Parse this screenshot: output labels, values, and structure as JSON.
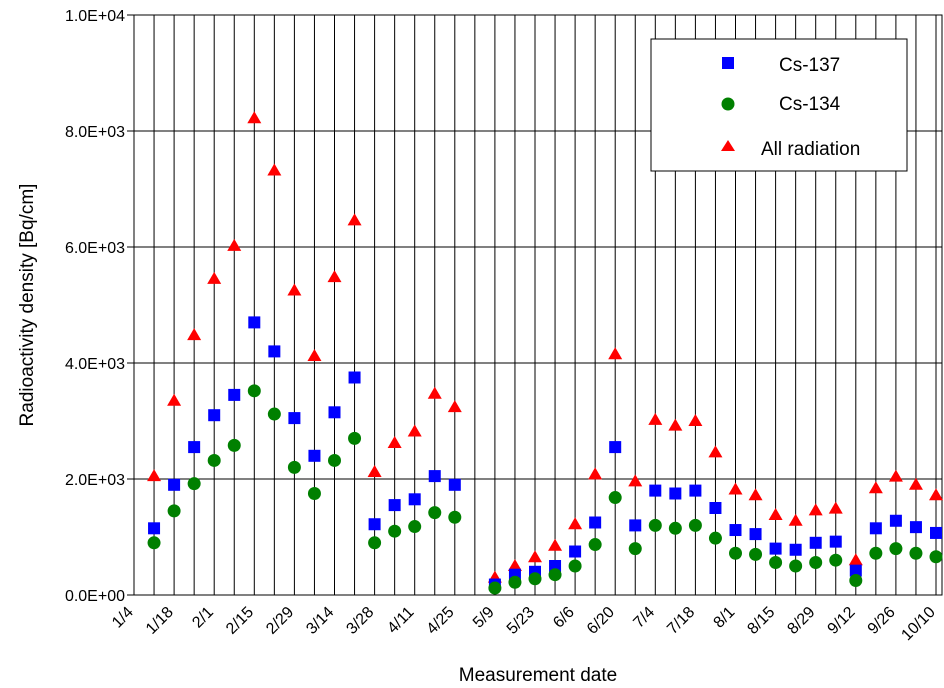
{
  "chart_data": {
    "type": "scatter",
    "xlabel": "Measurement date",
    "ylabel": "Radioactivity density [Bq/cm]",
    "ylim": [
      0,
      10000
    ],
    "y_ticks": [
      "0.0E+00",
      "2.0E+03",
      "4.0E+03",
      "6.0E+03",
      "8.0E+03",
      "1.0E+04"
    ],
    "y_tick_values": [
      0,
      2000,
      4000,
      6000,
      8000,
      10000
    ],
    "x_tick_labels": [
      "1/4",
      "1/18",
      "2/1",
      "2/15",
      "2/29",
      "3/14",
      "3/28",
      "4/11",
      "4/25",
      "5/9",
      "5/23",
      "6/6",
      "6/20",
      "7/4",
      "7/18",
      "8/1",
      "8/15",
      "8/29",
      "9/12",
      "9/26",
      "10/10"
    ],
    "grid": "vertical-lines-each-week, horizontal-lines-at-major-ticks",
    "legend_position": "top-right",
    "x": [
      "1/4",
      "1/11",
      "1/18",
      "1/25",
      "2/1",
      "2/8",
      "2/15",
      "2/22",
      "2/29",
      "3/7",
      "3/14",
      "3/21",
      "3/28",
      "4/4",
      "4/11",
      "4/18",
      "4/25",
      "5/2",
      "5/9",
      "5/16",
      "5/23",
      "5/30",
      "6/6",
      "6/13",
      "6/20",
      "6/27",
      "7/4",
      "7/11",
      "7/18",
      "7/25",
      "8/1",
      "8/8",
      "8/15",
      "8/22",
      "8/29",
      "9/5",
      "9/12",
      "9/19",
      "9/26",
      "10/3",
      "10/10"
    ],
    "series": [
      {
        "name": "Cs-137",
        "marker": "square",
        "color": "#0000ff",
        "values": [
          1150,
          1900,
          2550,
          3100,
          3450,
          4700,
          4200,
          3050,
          2400,
          3150,
          3750,
          1220,
          1550,
          1650,
          2050,
          1900,
          180,
          350,
          400,
          500,
          750,
          1250,
          2550,
          1200,
          1800,
          1750,
          1800,
          1500,
          1120,
          1050,
          800,
          780,
          900,
          920,
          420,
          1150,
          1280,
          1170,
          1070,
          950,
          1000
        ],
        "x_index": [
          1,
          2,
          3,
          4,
          5,
          6,
          7,
          8,
          9,
          10,
          11,
          12,
          13,
          14,
          15,
          16,
          18,
          19,
          20,
          21,
          22,
          23,
          24,
          25,
          26,
          27,
          28,
          29,
          30,
          31,
          32,
          33,
          34,
          35,
          36,
          37,
          38,
          39,
          40,
          41,
          42
        ]
      },
      {
        "name": "Cs-134",
        "marker": "circle",
        "color": "#008000",
        "values": [
          900,
          1450,
          1920,
          2320,
          2580,
          3520,
          3120,
          2200,
          1750,
          2320,
          2700,
          900,
          1100,
          1180,
          1420,
          1340,
          120,
          220,
          280,
          350,
          500,
          870,
          1680,
          800,
          1200,
          1150,
          1200,
          980,
          720,
          700,
          560,
          500,
          560,
          600,
          250,
          720,
          800,
          720,
          660,
          580,
          600
        ],
        "x_index": [
          1,
          2,
          3,
          4,
          5,
          6,
          7,
          8,
          9,
          10,
          11,
          12,
          13,
          14,
          15,
          16,
          18,
          19,
          20,
          21,
          22,
          23,
          24,
          25,
          26,
          27,
          28,
          29,
          30,
          31,
          32,
          33,
          34,
          35,
          36,
          37,
          38,
          39,
          40,
          41,
          42
        ]
      },
      {
        "name": "All radiation",
        "marker": "triangle",
        "color": "#ff0000",
        "values": [
          2050,
          3350,
          4480,
          5450,
          6020,
          8220,
          7320,
          5250,
          4120,
          5480,
          6460,
          2120,
          2620,
          2820,
          3470,
          3240,
          300,
          500,
          650,
          850,
          1220,
          2080,
          4150,
          1960,
          3020,
          2920,
          3000,
          2460,
          1820,
          1720,
          1380,
          1280,
          1460,
          1490,
          600,
          1840,
          2040,
          1900,
          1720,
          1540,
          1600
        ],
        "x_index": [
          1,
          2,
          3,
          4,
          5,
          6,
          7,
          8,
          9,
          10,
          11,
          12,
          13,
          14,
          15,
          16,
          18,
          19,
          20,
          21,
          22,
          23,
          24,
          25,
          26,
          27,
          28,
          29,
          30,
          31,
          32,
          33,
          34,
          35,
          36,
          37,
          38,
          39,
          40,
          41,
          42
        ]
      }
    ]
  }
}
